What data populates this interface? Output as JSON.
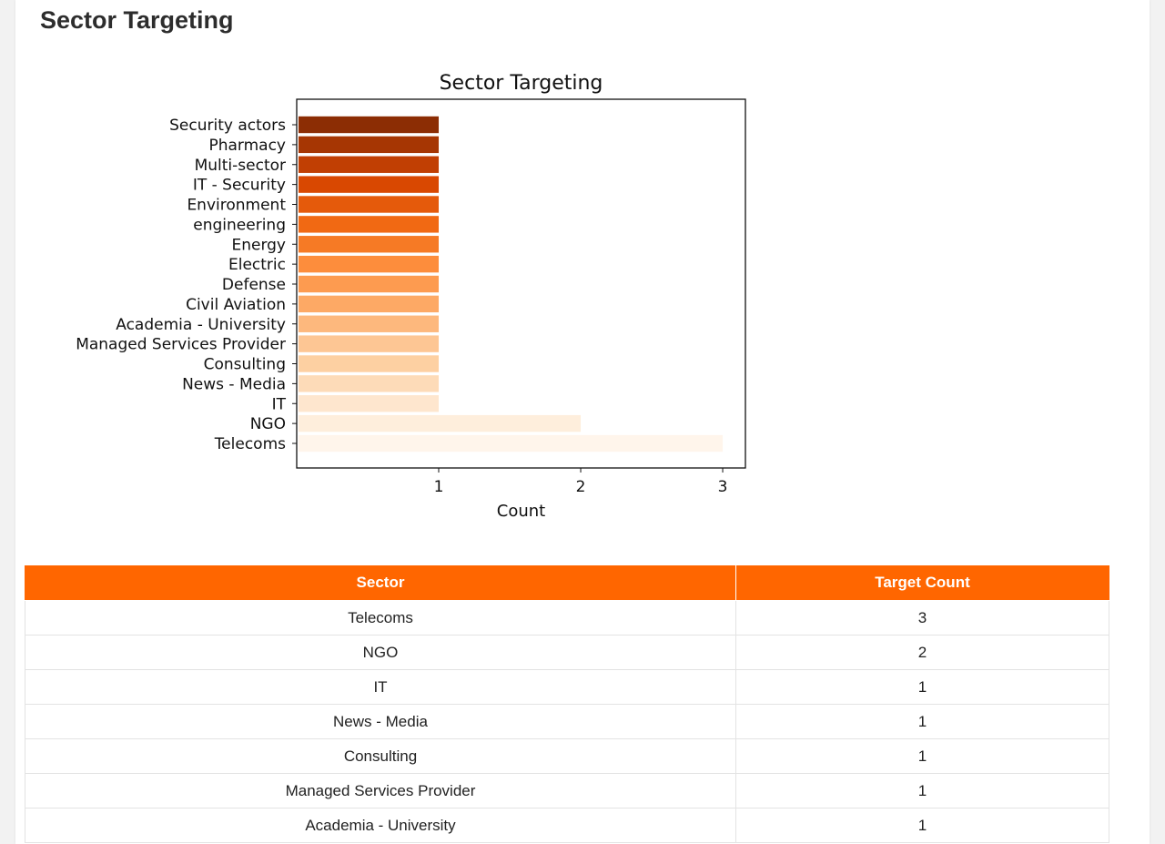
{
  "page": {
    "title": "Sector Targeting"
  },
  "chart_data": {
    "type": "bar",
    "orientation": "horizontal",
    "title": "Sector Targeting",
    "xlabel": "Count",
    "ylabel": "",
    "xlim": [
      0,
      3.16
    ],
    "xticks": [
      1,
      2,
      3
    ],
    "grid": false,
    "categories": [
      "Security actors",
      "Pharmacy",
      "Multi-sector",
      "IT - Security",
      "Environment",
      "engineering",
      "Energy",
      "Electric",
      "Defense",
      "Civil Aviation",
      "Academia - University",
      "Managed Services Provider",
      "Consulting",
      "News - Media",
      "IT",
      "NGO",
      "Telecoms"
    ],
    "values": [
      1,
      1,
      1,
      1,
      1,
      1,
      1,
      1,
      1,
      1,
      1,
      1,
      1,
      1,
      1,
      2,
      3
    ],
    "colors": [
      "#8c2d04",
      "#a63603",
      "#c13f03",
      "#d94801",
      "#e55a0b",
      "#f16913",
      "#f67a25",
      "#fd8d3c",
      "#fd9b50",
      "#fda965",
      "#fdb87d",
      "#fdc694",
      "#fdd0a2",
      "#fddbb8",
      "#fee6ce",
      "#feeedc",
      "#fff5eb"
    ]
  },
  "table": {
    "headers": [
      "Sector",
      "Target Count"
    ],
    "rows": [
      [
        "Telecoms",
        "3"
      ],
      [
        "NGO",
        "2"
      ],
      [
        "IT",
        "1"
      ],
      [
        "News - Media",
        "1"
      ],
      [
        "Consulting",
        "1"
      ],
      [
        "Managed Services Provider",
        "1"
      ],
      [
        "Academia - University",
        "1"
      ]
    ]
  }
}
